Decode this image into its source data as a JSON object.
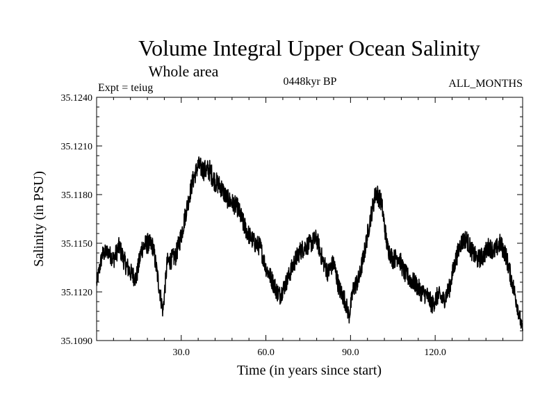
{
  "chart_data": {
    "type": "line",
    "title": "Volume Integral Upper Ocean Salinity",
    "subtitle": "Whole area",
    "annotations": {
      "experiment": "Expt = teiug",
      "period": "0448kyr BP",
      "months": "ALL_MONTHS"
    },
    "xlabel": "Time (in years since start)",
    "ylabel": "Salinity (in PSU)",
    "xlim": [
      0,
      151
    ],
    "ylim": [
      35.109,
      35.124
    ],
    "xticks": [
      30,
      60,
      90,
      120
    ],
    "xtick_labels": [
      "30.0",
      "60.0",
      "90.0",
      "120.0"
    ],
    "yticks": [
      35.109,
      35.112,
      35.115,
      35.118,
      35.121,
      35.124
    ],
    "ytick_labels": [
      "35.1090",
      "35.1120",
      "35.1150",
      "35.1180",
      "35.1210",
      "35.1240"
    ],
    "grid": false,
    "series": [
      {
        "name": "Salinity",
        "color": "#000000",
        "x": [
          0,
          2,
          4,
          6,
          8,
          10,
          12,
          14,
          16,
          18,
          20,
          22,
          23.5,
          25,
          28,
          30,
          32,
          34,
          36,
          38,
          40,
          42,
          44,
          46,
          48,
          50,
          52,
          54,
          56,
          58,
          60,
          62,
          64,
          65,
          67,
          70,
          72,
          74,
          76,
          78,
          80,
          82,
          84,
          86,
          88,
          89.5,
          91,
          93,
          95,
          97,
          99,
          101,
          103,
          105,
          107,
          109,
          111,
          113,
          115,
          117,
          119,
          121,
          123,
          125,
          127,
          129,
          131,
          133,
          135,
          137,
          139,
          141,
          143,
          145,
          147,
          149,
          151
        ],
        "mean": [
          35.1125,
          35.1143,
          35.1145,
          35.114,
          35.1148,
          35.1138,
          35.1132,
          35.1128,
          35.1147,
          35.115,
          35.1148,
          35.1125,
          35.1108,
          35.1138,
          35.1142,
          35.1155,
          35.1172,
          35.1188,
          35.1198,
          35.1195,
          35.1195,
          35.1188,
          35.1185,
          35.1178,
          35.1175,
          35.1172,
          35.1162,
          35.1155,
          35.115,
          35.1148,
          35.1135,
          35.1128,
          35.112,
          35.1118,
          35.1125,
          35.1138,
          35.1145,
          35.1148,
          35.115,
          35.1153,
          35.114,
          35.1132,
          35.1138,
          35.1122,
          35.1115,
          35.1105,
          35.1122,
          35.1128,
          35.1145,
          35.1165,
          35.1182,
          35.1175,
          35.1148,
          35.114,
          35.1142,
          35.1132,
          35.1128,
          35.1125,
          35.112,
          35.1118,
          35.1112,
          35.1118,
          35.1115,
          35.1122,
          35.1138,
          35.115,
          35.1153,
          35.1145,
          35.114,
          35.1142,
          35.1148,
          35.1145,
          35.115,
          35.1143,
          35.1128,
          35.1113,
          35.1095
        ],
        "band": [
          0.0009,
          0.0011,
          0.001,
          0.0012,
          0.0012,
          0.0013,
          0.0012,
          0.0012,
          0.0013,
          0.0013,
          0.0012,
          0.0012,
          0.001,
          0.0012,
          0.0012,
          0.0013,
          0.0012,
          0.0012,
          0.0012,
          0.0013,
          0.0014,
          0.0013,
          0.0013,
          0.0012,
          0.0012,
          0.0012,
          0.0013,
          0.0012,
          0.0012,
          0.0012,
          0.0011,
          0.0012,
          0.0012,
          0.0012,
          0.0011,
          0.0012,
          0.0012,
          0.0012,
          0.0012,
          0.0012,
          0.0012,
          0.0012,
          0.0012,
          0.0012,
          0.0012,
          0.001,
          0.0012,
          0.0012,
          0.0012,
          0.0012,
          0.0013,
          0.0012,
          0.0012,
          0.0012,
          0.0012,
          0.0012,
          0.0012,
          0.0012,
          0.0012,
          0.0012,
          0.0012,
          0.0012,
          0.0012,
          0.0012,
          0.0012,
          0.0012,
          0.0012,
          0.0012,
          0.0012,
          0.0012,
          0.0012,
          0.0012,
          0.0012,
          0.0012,
          0.0012,
          0.0012,
          0.0008
        ]
      }
    ]
  }
}
